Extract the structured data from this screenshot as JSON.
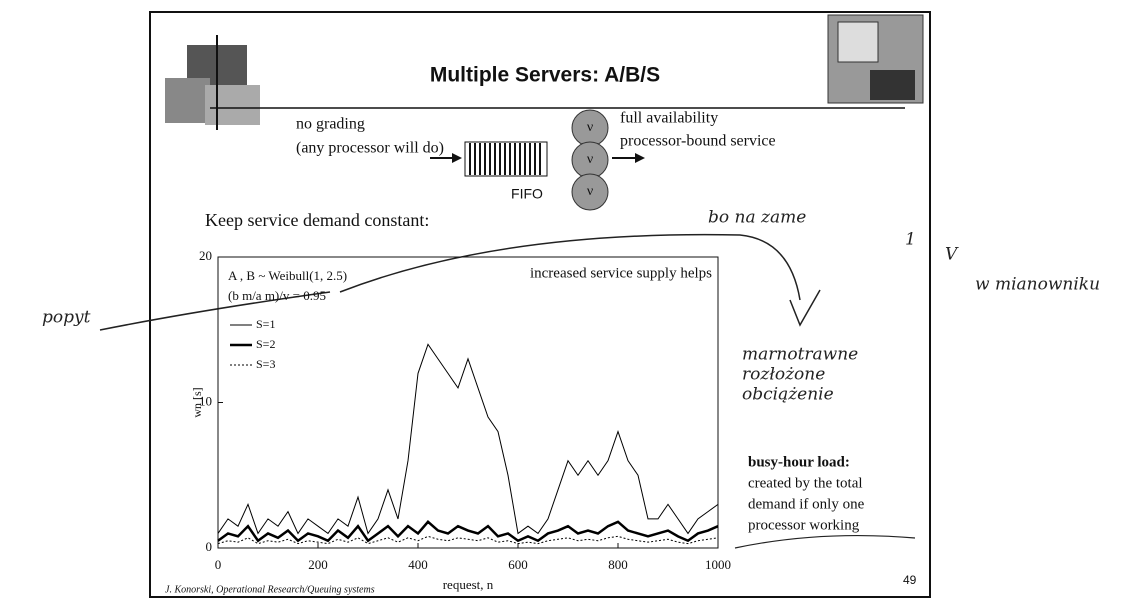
{
  "title": "Multiple Servers: A/B/S",
  "diagram": {
    "left_lines": [
      "no grading",
      "(any processor will do)"
    ],
    "queue_label": "FIFO",
    "server_labels": [
      "ν",
      "ν",
      "ν"
    ],
    "right_lines": [
      "full availability",
      "processor-bound service"
    ]
  },
  "note": "Keep service demand constant:",
  "busy_hour": {
    "heading": "busy-hour load:",
    "lines": [
      "created by the total",
      "demand if only one",
      "processor working"
    ]
  },
  "footer": {
    "credit": "J. Konorski, Operational Research/Queuing systems",
    "page": "49"
  },
  "handwriting": [
    "popyt",
    "bo na zame",
    "1",
    "V",
    "w mianowniku",
    "marnotrawne",
    "rozłożone",
    "obciążenie"
  ],
  "chart_data": {
    "type": "line",
    "xlabel": "request, n",
    "ylabel": "wn [s]",
    "annotations": [
      "A , B ~ Weibull(1, 2.5)",
      "(b m/a m)/v = 0.95",
      "increased service supply helps"
    ],
    "xlim": [
      0,
      1000
    ],
    "xticks": [
      0,
      200,
      400,
      600,
      800,
      1000
    ],
    "ylim": [
      0,
      20
    ],
    "yticks": [
      0,
      10,
      20
    ],
    "legend": "upper left",
    "x": [
      0,
      20,
      40,
      60,
      80,
      100,
      120,
      140,
      160,
      180,
      200,
      220,
      240,
      260,
      280,
      300,
      320,
      340,
      360,
      380,
      400,
      420,
      440,
      460,
      480,
      500,
      520,
      540,
      560,
      580,
      600,
      620,
      640,
      660,
      680,
      700,
      720,
      740,
      760,
      780,
      800,
      820,
      840,
      860,
      880,
      900,
      920,
      940,
      960,
      980,
      1000
    ],
    "series": [
      {
        "name": "S=1",
        "color": "#000000",
        "values": [
          1,
          2,
          1.5,
          3,
          1,
          2,
          1.5,
          2.5,
          1,
          2,
          1.5,
          1,
          2,
          1.5,
          3.5,
          1,
          2,
          4,
          2,
          6,
          12,
          14,
          13,
          12,
          11,
          13,
          11,
          9,
          8,
          5,
          1,
          1.5,
          1,
          2,
          4,
          6,
          5,
          6,
          5,
          6,
          8,
          6,
          5,
          2,
          2,
          3,
          2,
          1,
          2,
          2.5,
          3
        ]
      },
      {
        "name": "S=2",
        "color": "#000000",
        "values": [
          0.5,
          1,
          0.8,
          1.5,
          0.5,
          1,
          0.7,
          1.2,
          0.5,
          1,
          0.8,
          0.5,
          1.2,
          0.7,
          1.5,
          0.5,
          1,
          1.5,
          0.8,
          1.5,
          1,
          1.8,
          1.2,
          1,
          1.5,
          1.2,
          1,
          1.5,
          0.8,
          1,
          0.5,
          0.8,
          0.5,
          1,
          1.2,
          1.5,
          1,
          1.2,
          1,
          1.5,
          1.8,
          1.2,
          1,
          0.8,
          1,
          1.2,
          0.8,
          0.5,
          1,
          1.2,
          1.5
        ]
      },
      {
        "name": "S=3",
        "color": "#000000",
        "values": [
          0.3,
          0.5,
          0.4,
          0.7,
          0.3,
          0.5,
          0.4,
          0.6,
          0.3,
          0.5,
          0.4,
          0.3,
          0.6,
          0.4,
          0.7,
          0.3,
          0.5,
          0.7,
          0.4,
          0.7,
          0.5,
          0.8,
          0.6,
          0.5,
          0.7,
          0.6,
          0.5,
          0.7,
          0.4,
          0.5,
          0.3,
          0.4,
          0.3,
          0.5,
          0.6,
          0.7,
          0.5,
          0.6,
          0.5,
          0.7,
          0.8,
          0.6,
          0.5,
          0.4,
          0.5,
          0.6,
          0.4,
          0.3,
          0.5,
          0.6,
          0.7
        ]
      }
    ]
  }
}
